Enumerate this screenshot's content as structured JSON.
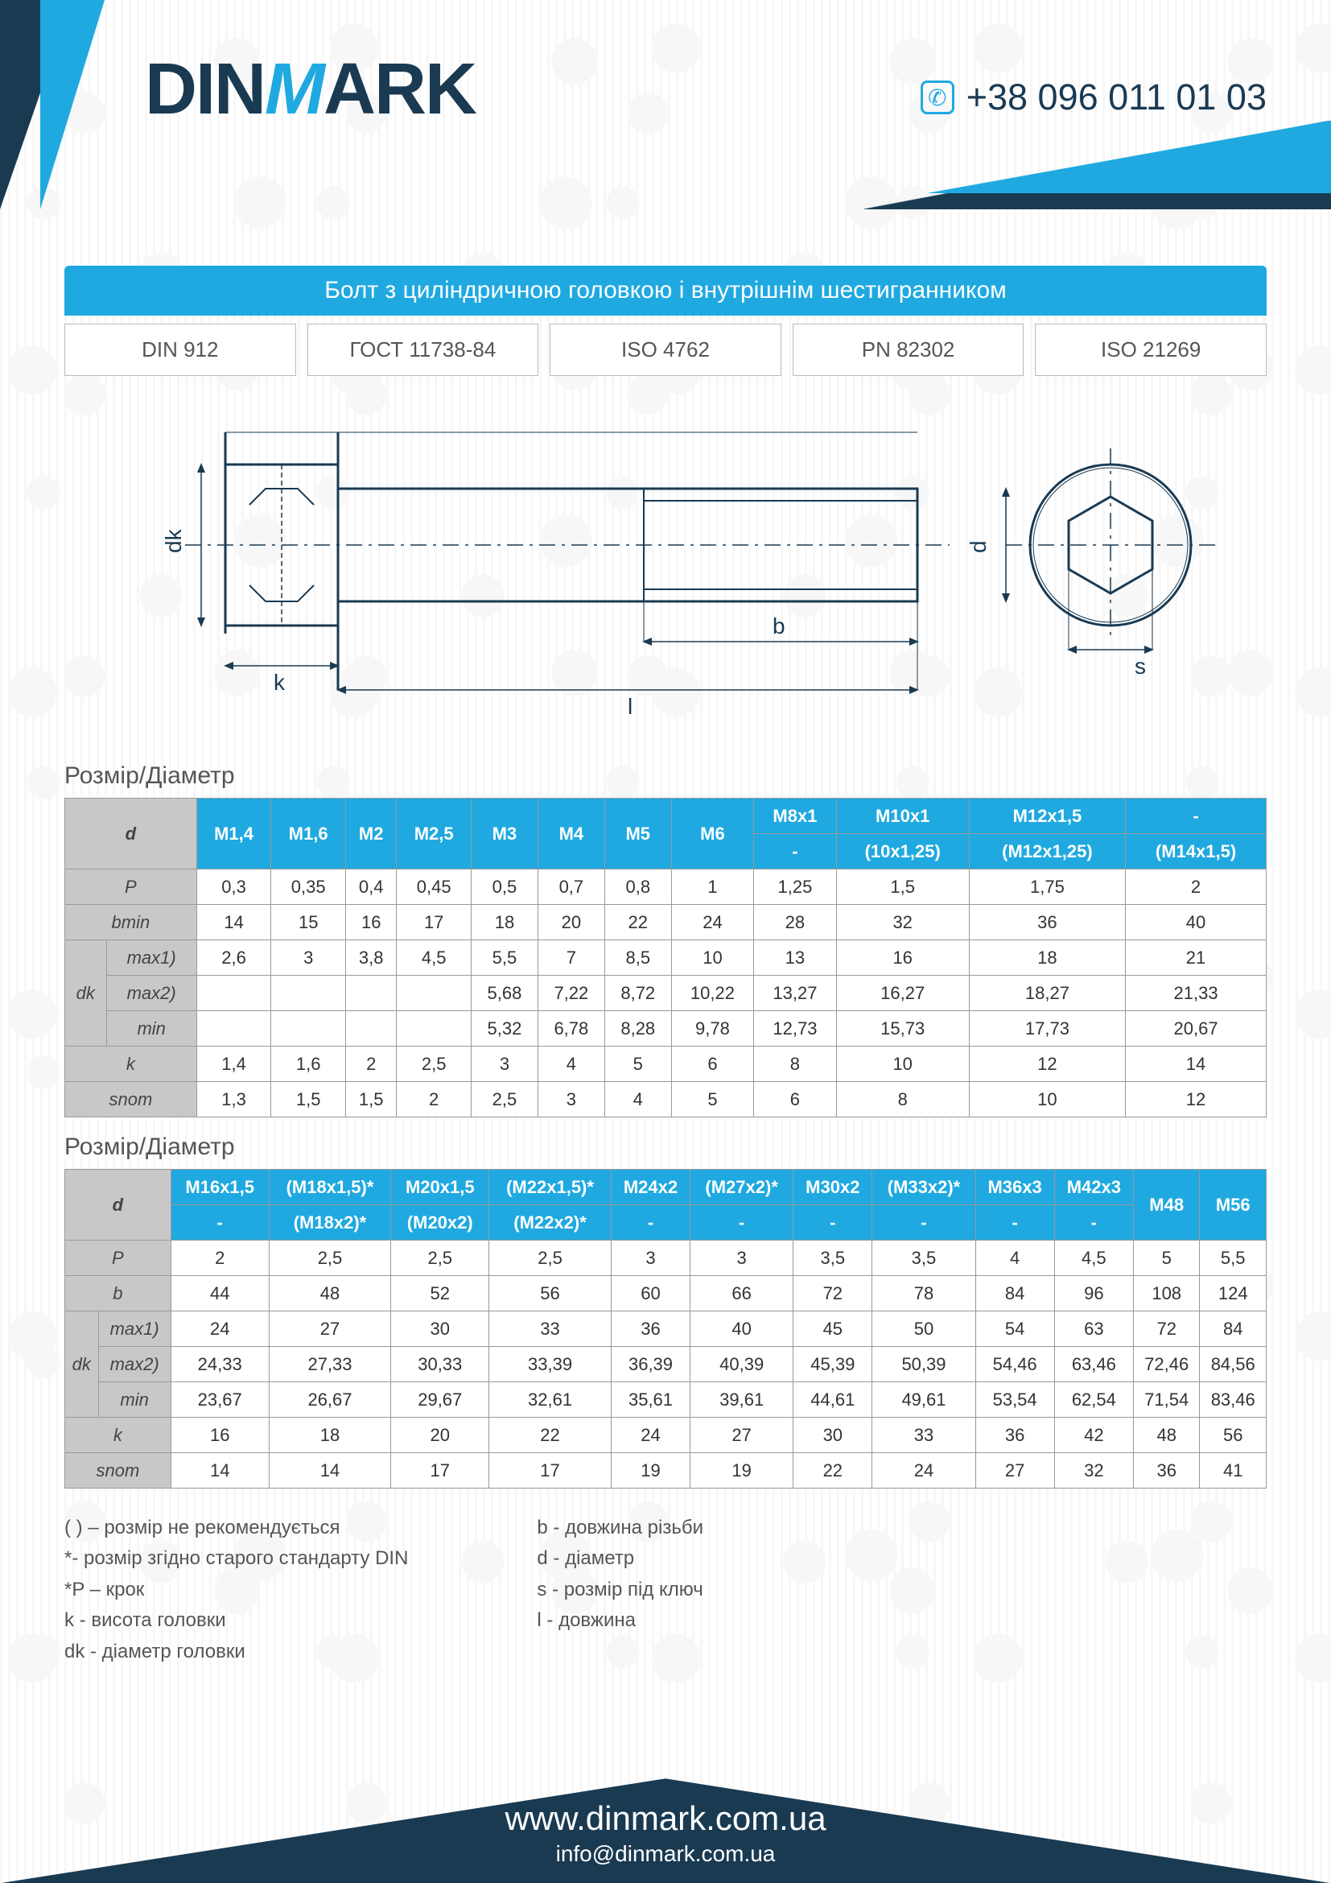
{
  "brand": {
    "part1": "DIN",
    "part2": "M",
    "part3": "ARK"
  },
  "phone": "+38 096 011 01 03",
  "title": "Болт з циліндричною головкою і внутрішнім шестигранником",
  "standards": [
    "DIN 912",
    "ГОСТ 11738-84",
    "ISO 4762",
    "PN 82302",
    "ISO 21269"
  ],
  "section_title": "Розмір/Діаметр",
  "diagram_labels": {
    "dk": "dk",
    "k": "k",
    "l": "l",
    "b": "b",
    "d": "d",
    "s": "s"
  },
  "table1": {
    "d_row1": [
      "M1,4",
      "M1,6",
      "M2",
      "M2,5",
      "M3",
      "M4",
      "M5",
      "M6",
      "M8x1",
      "M10x1",
      "M12x1,5",
      "-"
    ],
    "d_row2": [
      "",
      "",
      "",
      "",
      "",
      "",
      "",
      "",
      "-",
      "(10x1,25)",
      "(M12x1,25)",
      "(M14x1,5)"
    ],
    "d_row2_span_start": 8,
    "rows": [
      {
        "label": "P",
        "vals": [
          "0,3",
          "0,35",
          "0,4",
          "0,45",
          "0,5",
          "0,7",
          "0,8",
          "1",
          "1,25",
          "1,5",
          "1,75",
          "2"
        ]
      },
      {
        "label": "bmin",
        "vals": [
          "14",
          "15",
          "16",
          "17",
          "18",
          "20",
          "22",
          "24",
          "28",
          "32",
          "36",
          "40"
        ]
      },
      {
        "group": "dk",
        "label": "max1)",
        "vals": [
          "2,6",
          "3",
          "3,8",
          "4,5",
          "5,5",
          "7",
          "8,5",
          "10",
          "13",
          "16",
          "18",
          "21"
        ]
      },
      {
        "group": "dk",
        "label": "max2)",
        "vals": [
          "",
          "",
          "",
          "",
          "5,68",
          "7,22",
          "8,72",
          "10,22",
          "13,27",
          "16,27",
          "18,27",
          "21,33"
        ]
      },
      {
        "group": "dk",
        "label": "min",
        "vals": [
          "",
          "",
          "",
          "",
          "5,32",
          "6,78",
          "8,28",
          "9,78",
          "12,73",
          "15,73",
          "17,73",
          "20,67"
        ]
      },
      {
        "label": "k",
        "vals": [
          "1,4",
          "1,6",
          "2",
          "2,5",
          "3",
          "4",
          "5",
          "6",
          "8",
          "10",
          "12",
          "14"
        ]
      },
      {
        "label": "snom",
        "vals": [
          "1,3",
          "1,5",
          "1,5",
          "2",
          "2,5",
          "3",
          "4",
          "5",
          "6",
          "8",
          "10",
          "12"
        ]
      }
    ]
  },
  "table2": {
    "d_row1": [
      "M16x1,5",
      "(M18x1,5)*",
      "M20x1,5",
      "(M22x1,5)*",
      "M24x2",
      "(M27x2)*",
      "M30x2",
      "(M33x2)*",
      "M36x3",
      "M42x3",
      "M48",
      "M56"
    ],
    "d_row2": [
      "-",
      "(M18x2)*",
      "(M20x2)",
      "(M22x2)*",
      "-",
      "-",
      "-",
      "-",
      "-",
      "-",
      "",
      ""
    ],
    "merge_last": 2,
    "rows": [
      {
        "label": "P",
        "vals": [
          "2",
          "2,5",
          "2,5",
          "2,5",
          "3",
          "3",
          "3,5",
          "3,5",
          "4",
          "4,5",
          "5",
          "5,5"
        ]
      },
      {
        "label": "b",
        "vals": [
          "44",
          "48",
          "52",
          "56",
          "60",
          "66",
          "72",
          "78",
          "84",
          "96",
          "108",
          "124"
        ]
      },
      {
        "group": "dk",
        "label": "max1)",
        "vals": [
          "24",
          "27",
          "30",
          "33",
          "36",
          "40",
          "45",
          "50",
          "54",
          "63",
          "72",
          "84"
        ]
      },
      {
        "group": "dk",
        "label": "max2)",
        "vals": [
          "24,33",
          "27,33",
          "30,33",
          "33,39",
          "36,39",
          "40,39",
          "45,39",
          "50,39",
          "54,46",
          "63,46",
          "72,46",
          "84,56"
        ]
      },
      {
        "group": "dk",
        "label": "min",
        "vals": [
          "23,67",
          "26,67",
          "29,67",
          "32,61",
          "35,61",
          "39,61",
          "44,61",
          "49,61",
          "53,54",
          "62,54",
          "71,54",
          "83,46"
        ]
      },
      {
        "label": "k",
        "vals": [
          "16",
          "18",
          "20",
          "22",
          "24",
          "27",
          "30",
          "33",
          "36",
          "42",
          "48",
          "56"
        ]
      },
      {
        "label": "snom",
        "vals": [
          "14",
          "14",
          "17",
          "17",
          "19",
          "19",
          "22",
          "24",
          "27",
          "32",
          "36",
          "41"
        ]
      }
    ]
  },
  "legend_left": [
    "( ) – розмір не рекомендується",
    "*- розмір згідно старого стандарту  DIN",
    "*P – крок",
    "k - висота головки",
    "dk - діаметр головки"
  ],
  "legend_right": [
    "b - довжина різьби",
    "d - діаметр",
    "s - розмір під ключ",
    "l - довжина"
  ],
  "footer": {
    "url": "www.dinmark.com.ua",
    "email": "info@dinmark.com.ua"
  },
  "colors": {
    "accent": "#1fa9e0",
    "dark": "#1a3a52",
    "grey_header": "#c8c8c8",
    "border": "#999999",
    "text": "#333333",
    "bg": "#ffffff"
  }
}
